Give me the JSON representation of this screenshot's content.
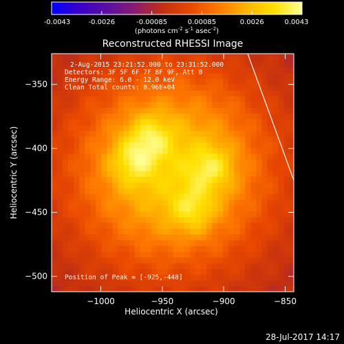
{
  "colors": {
    "background": "#000000",
    "text": "#ffffff",
    "colormap": [
      "#0000ff",
      "#3b00c8",
      "#5a10a0",
      "#8a1c70",
      "#c43010",
      "#e84800",
      "#ff7a00",
      "#ffb300",
      "#ffe000",
      "#ffff9a"
    ]
  },
  "colorbar": {
    "ticks": [
      "-0.0043",
      "-0.0026",
      "-0.00085",
      "0.00085",
      "0.0026",
      "0.0043"
    ],
    "unit_base": "(photons cm",
    "unit_exp1": "-2",
    "unit_mid": " s",
    "unit_exp2": "-1",
    "unit_mid2": " asec",
    "unit_exp3": "-2",
    "unit_end": ")"
  },
  "plot": {
    "title": "Reconstructed RHESSI Image",
    "info_lines": [
      "2-Aug-2015 23:21:52.000 to 23:31:52.000",
      "Detectors: 3F 5F 6F 7F 8F 9F, Att 0",
      "Energy Range: 6.0 - 12.0 keV",
      "Clean      Total counts: 8.96E+04"
    ],
    "peak_label": "Position of Peak = [-925,-448]",
    "footer_date": "28-Jul-2017 14:17"
  },
  "chart_data": {
    "type": "heatmap",
    "title": "Reconstructed RHESSI Image",
    "xlabel": "Heliocentric X (arcsec)",
    "ylabel": "Heliocentric Y (arcsec)",
    "xlim": [
      -1040,
      -843
    ],
    "ylim": [
      -512,
      -326
    ],
    "xticks": [
      -1000,
      -950,
      -900,
      -850
    ],
    "yticks": [
      -500,
      -450,
      -400,
      -350
    ],
    "colorbar_range": [
      -0.0043,
      0.0043
    ],
    "peak": [
      -925,
      -448
    ],
    "sources": [
      {
        "x": -960,
        "y": -390
      },
      {
        "x": -975,
        "y": -410
      },
      {
        "x": -925,
        "y": -448
      },
      {
        "x": -910,
        "y": -415
      }
    ]
  }
}
